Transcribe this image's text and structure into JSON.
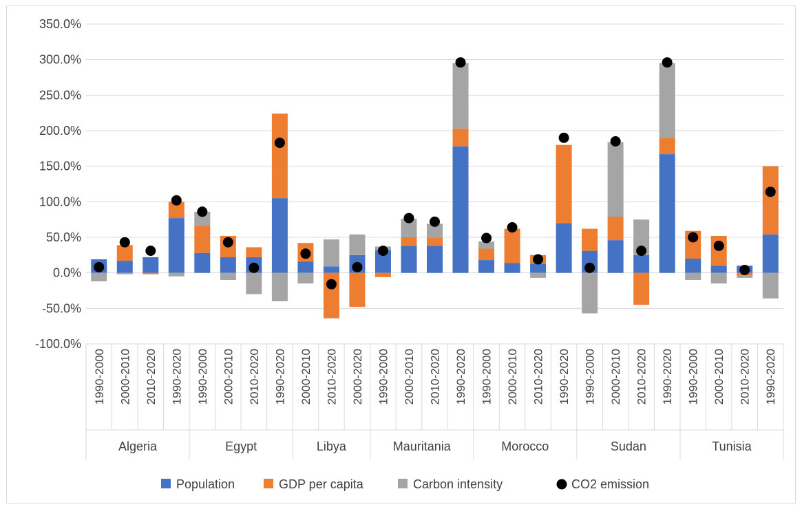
{
  "chart_data": {
    "type": "bar",
    "stacked": true,
    "yaxis": {
      "min": -100,
      "max": 350,
      "step": 50,
      "tick_labels": [
        "-100.0%",
        "-50.0%",
        "0.0%",
        "50.0%",
        "100.0%",
        "150.0%",
        "200.0%",
        "250.0%",
        "300.0%",
        "350.0%"
      ],
      "gridlines": true
    },
    "groups": [
      {
        "name": "Algeria",
        "periods": [
          "1990-2000",
          "2000-2010",
          "2010-2020",
          "1990-2020"
        ]
      },
      {
        "name": "Egypt",
        "periods": [
          "1990-2000",
          "2000-2010",
          "2010-2020",
          "1990-2020"
        ]
      },
      {
        "name": "Libya",
        "periods": [
          "2000-2010",
          "2010-2020",
          "2000-2020"
        ]
      },
      {
        "name": "Mauritania",
        "periods": [
          "1990-2000",
          "2000-2010",
          "2010-2020",
          "1990-2020"
        ]
      },
      {
        "name": "Morocco",
        "periods": [
          "1990-2000",
          "2000-2010",
          "2010-2020",
          "1990-2020"
        ]
      },
      {
        "name": "Sudan",
        "periods": [
          "1990-2000",
          "2000-2010",
          "2010-2020",
          "1990-2020"
        ]
      },
      {
        "name": "Tunisia",
        "periods": [
          "1990-2000",
          "2000-2010",
          "2010-2020",
          "1990-2020"
        ]
      }
    ],
    "series": [
      {
        "name": "Population",
        "kind": "bar",
        "color": "#4472c4",
        "values": [
          19,
          17,
          22,
          77,
          28,
          22,
          22,
          105,
          16,
          9,
          25,
          32,
          38,
          38,
          178,
          18,
          14,
          13,
          70,
          31,
          46,
          25,
          167,
          20,
          10,
          10,
          54
        ]
      },
      {
        "name": "GDP per capita",
        "kind": "bar",
        "color": "#ed7d31",
        "values": [
          0,
          22,
          -2,
          23,
          38,
          30,
          14,
          119,
          26,
          -64,
          -48,
          -6,
          12,
          11,
          25,
          16,
          48,
          12,
          110,
          31,
          33,
          -45,
          23,
          39,
          42,
          -4,
          96
        ]
      },
      {
        "name": "Carbon intensity",
        "kind": "bar",
        "color": "#a5a5a5",
        "values": [
          -12,
          -2,
          0,
          -5,
          20,
          -10,
          -30,
          -40,
          -15,
          38,
          29,
          5,
          26,
          20,
          92,
          10,
          0,
          -7,
          0,
          -57,
          105,
          50,
          105,
          -10,
          -15,
          -3,
          -36
        ]
      },
      {
        "name": "CO2 emission",
        "kind": "marker",
        "color": "#000000",
        "values": [
          8,
          43,
          31,
          102,
          86,
          43,
          7,
          183,
          27,
          -16,
          8,
          31,
          77,
          72,
          296,
          49,
          64,
          19,
          190,
          7,
          185,
          31,
          296,
          50,
          38,
          4,
          114
        ]
      }
    ],
    "legend_position": "bottom"
  }
}
